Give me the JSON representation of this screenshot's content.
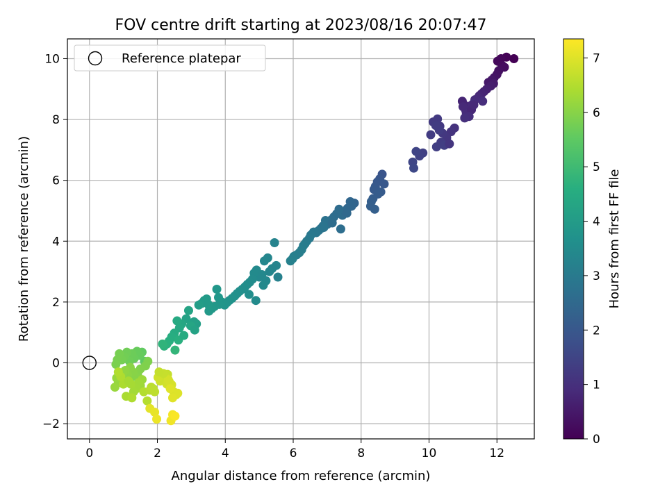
{
  "chart_data": {
    "type": "scatter",
    "title": "FOV centre drift starting at 2023/08/16 20:07:47",
    "xlabel": "Angular distance from reference (arcmin)",
    "ylabel": "Rotation from reference (arcmin)",
    "colorbar_label": "Hours from first FF file",
    "xlim": [
      -0.65,
      13.1
    ],
    "ylim": [
      -2.5,
      10.65
    ],
    "x_ticks": [
      0,
      2,
      4,
      6,
      8,
      10,
      12
    ],
    "y_ticks": [
      -2,
      0,
      2,
      4,
      6,
      8,
      10
    ],
    "colorbar_ticks": [
      0,
      1,
      2,
      3,
      4,
      5,
      6,
      7
    ],
    "colorbar_range": [
      0,
      7.35
    ],
    "colormap": "viridis",
    "grid": true,
    "legend": {
      "location": "upper-left",
      "entries": [
        {
          "label": "Reference platepar",
          "marker": "hollow-circle"
        }
      ]
    },
    "reference_point": {
      "x": 0,
      "y": 0
    },
    "series": [
      {
        "x": [
          12.5,
          12.28,
          12.12,
          12.02,
          12.15,
          12.22,
          12.05,
          12.0,
          11.92,
          11.85,
          11.75,
          11.9,
          11.82,
          11.7,
          11.62,
          11.55,
          11.48,
          11.45,
          11.35,
          11.58,
          11.3,
          11.22,
          11.15,
          11.08,
          11.02,
          10.98,
          11.0,
          11.1,
          11.25,
          11.32,
          11.18,
          11.05
        ],
        "y": [
          10.0,
          10.05,
          10.0,
          9.92,
          9.78,
          9.72,
          9.6,
          9.48,
          9.38,
          9.3,
          9.22,
          9.18,
          9.1,
          9.0,
          8.92,
          8.85,
          8.78,
          8.72,
          8.65,
          8.6,
          8.52,
          8.45,
          8.38,
          8.3,
          8.5,
          8.6,
          8.42,
          8.2,
          8.32,
          8.48,
          8.1,
          8.05
        ],
        "hours": [
          0.0,
          0.05,
          0.1,
          0.15,
          0.2,
          0.25,
          0.3,
          0.35,
          0.4,
          0.45,
          0.5,
          0.55,
          0.6,
          0.65,
          0.7,
          0.75,
          0.8,
          0.85,
          0.9,
          0.95,
          1.0,
          0.85,
          0.9,
          0.95,
          0.8,
          0.75,
          0.85,
          0.9,
          0.8,
          0.85,
          0.95,
          1.0
        ]
      },
      {
        "x": [
          10.75,
          10.65,
          10.52,
          10.4,
          10.32,
          10.25,
          10.12,
          10.05,
          10.35,
          10.22,
          10.3,
          10.45,
          9.82,
          9.72,
          9.62,
          9.52,
          9.55,
          10.6,
          10.2
        ],
        "y": [
          7.72,
          7.6,
          7.4,
          7.55,
          7.78,
          8.02,
          7.92,
          7.5,
          7.25,
          7.1,
          7.65,
          7.15,
          6.9,
          6.8,
          6.95,
          6.6,
          6.4,
          7.2,
          7.8
        ],
        "hours": [
          1.05,
          1.1,
          1.15,
          1.2,
          1.2,
          1.25,
          1.25,
          1.3,
          1.3,
          1.35,
          1.3,
          1.35,
          1.4,
          1.45,
          1.5,
          1.55,
          1.6,
          1.12,
          1.28
        ]
      },
      {
        "x": [
          8.62,
          8.55,
          8.68,
          8.48,
          8.42,
          8.38,
          8.58,
          8.5,
          8.35,
          8.3,
          8.28,
          8.4,
          7.8,
          7.72,
          7.68,
          7.6,
          7.52,
          7.45,
          7.35,
          7.28,
          7.2,
          7.12,
          7.05,
          7.0,
          6.95,
          6.88,
          6.82,
          6.75,
          6.68,
          6.6,
          6.52,
          6.48,
          6.4,
          6.35,
          6.3,
          6.25,
          6.18,
          6.1,
          6.02,
          5.98,
          5.92,
          7.58,
          7.4,
          7.15,
          6.9
        ],
        "y": [
          6.2,
          6.05,
          5.88,
          5.95,
          5.8,
          5.7,
          5.62,
          5.55,
          5.4,
          5.3,
          5.15,
          5.05,
          5.25,
          5.15,
          5.3,
          5.08,
          4.98,
          4.85,
          5.05,
          4.9,
          4.8,
          4.7,
          4.62,
          4.55,
          4.68,
          4.5,
          4.42,
          4.35,
          4.28,
          4.3,
          4.2,
          4.1,
          4.0,
          3.92,
          3.85,
          3.72,
          3.62,
          3.55,
          3.5,
          3.42,
          3.35,
          4.92,
          4.4,
          4.6,
          4.45
        ],
        "hours": [
          1.9,
          1.95,
          2.0,
          2.02,
          2.05,
          2.08,
          2.1,
          2.12,
          2.15,
          2.18,
          2.2,
          2.22,
          2.35,
          2.4,
          2.42,
          2.45,
          2.5,
          2.55,
          2.58,
          2.6,
          2.62,
          2.65,
          2.7,
          2.72,
          2.75,
          2.78,
          2.8,
          2.85,
          2.88,
          2.9,
          2.92,
          2.95,
          3.0,
          3.02,
          3.05,
          3.08,
          3.1,
          3.12,
          3.15,
          3.18,
          3.2,
          2.48,
          2.65,
          2.6,
          2.82
        ]
      },
      {
        "x": [
          5.45,
          5.5,
          5.38,
          5.3,
          5.25,
          5.15,
          5.08,
          5.0,
          4.92,
          4.85,
          4.8,
          4.72,
          4.65,
          4.58,
          4.5,
          4.42,
          4.35,
          4.28,
          4.2,
          4.12,
          4.05,
          3.98,
          3.9,
          3.82,
          3.75,
          3.68,
          3.6,
          3.52,
          3.45,
          3.38,
          3.3,
          3.22,
          3.15,
          3.08,
          5.55,
          5.2,
          4.9,
          5.12,
          4.7,
          3.8,
          3.5
        ],
        "y": [
          3.95,
          3.2,
          3.1,
          3.0,
          3.45,
          3.35,
          2.9,
          2.82,
          3.05,
          2.95,
          2.75,
          2.65,
          2.58,
          2.5,
          2.42,
          2.35,
          2.28,
          2.2,
          2.12,
          2.05,
          1.98,
          1.9,
          2.0,
          1.92,
          2.42,
          1.85,
          1.78,
          1.7,
          2.1,
          2.05,
          1.95,
          1.9,
          1.28,
          1.35,
          2.82,
          2.7,
          2.05,
          2.55,
          2.25,
          2.15,
          1.92
        ],
        "hours": [
          3.25,
          3.28,
          3.3,
          3.32,
          3.35,
          3.38,
          3.4,
          3.42,
          3.45,
          3.48,
          3.5,
          3.52,
          3.55,
          3.58,
          3.6,
          3.62,
          3.65,
          3.68,
          3.7,
          3.72,
          3.75,
          3.78,
          3.8,
          3.82,
          3.85,
          3.88,
          3.9,
          3.92,
          3.95,
          3.98,
          4.0,
          4.05,
          4.1,
          4.15,
          3.2,
          3.4,
          3.5,
          3.45,
          3.6,
          3.85,
          3.95
        ]
      },
      {
        "x": [
          2.85,
          2.92,
          2.98,
          3.1,
          2.72,
          2.65,
          2.58,
          2.5,
          2.42,
          2.35,
          2.28,
          2.2,
          2.15,
          2.52,
          2.62,
          2.78
        ],
        "y": [
          1.45,
          1.72,
          1.22,
          1.08,
          1.28,
          1.15,
          1.38,
          0.98,
          0.85,
          0.72,
          0.62,
          0.55,
          0.62,
          0.42,
          0.75,
          0.9
        ],
        "hours": [
          4.2,
          4.25,
          4.3,
          4.22,
          4.35,
          4.4,
          4.45,
          4.5,
          4.55,
          4.6,
          4.65,
          4.7,
          4.75,
          4.8,
          4.62,
          4.5
        ]
      },
      {
        "x": [
          1.62,
          1.55,
          1.48,
          1.4,
          1.32,
          1.25,
          1.18,
          1.1,
          1.02,
          0.95,
          0.88,
          0.82,
          0.78,
          1.72,
          1.65,
          1.5,
          1.42,
          1.35,
          1.28,
          1.2,
          1.12,
          1.05,
          0.98,
          0.9,
          0.85,
          0.8,
          0.75,
          1.55,
          1.5,
          1.45,
          1.38,
          1.3,
          1.22,
          1.15,
          1.08,
          1.0,
          0.92,
          0.85,
          1.6,
          1.7,
          1.78,
          1.82,
          1.88,
          1.92,
          1.25,
          1.15
        ],
        "y": [
          0.05,
          0.35,
          0.25,
          0.38,
          0.15,
          0.3,
          0.05,
          0.35,
          0.2,
          0.1,
          0.3,
          0.1,
          -0.05,
          0.05,
          -0.1,
          -0.2,
          -0.35,
          -0.45,
          -0.3,
          -0.15,
          -0.4,
          -0.25,
          -0.35,
          -0.55,
          -0.65,
          -0.5,
          -0.8,
          -0.55,
          -0.75,
          -0.65,
          -0.85,
          -0.95,
          -0.7,
          -0.6,
          -1.1,
          -0.7,
          -0.45,
          -0.3,
          -0.95,
          -1.25,
          -0.9,
          -0.8,
          -0.85,
          -0.95,
          -1.15,
          -0.6
        ],
        "hours": [
          5.5,
          5.55,
          5.6,
          5.62,
          5.65,
          5.68,
          5.7,
          5.72,
          5.75,
          5.78,
          5.8,
          5.82,
          5.85,
          5.88,
          5.9,
          5.92,
          5.95,
          5.98,
          6.0,
          6.02,
          6.05,
          6.08,
          6.1,
          6.12,
          6.15,
          6.18,
          6.2,
          6.22,
          6.25,
          6.28,
          6.3,
          6.32,
          6.35,
          6.38,
          6.4,
          6.42,
          6.45,
          6.48,
          6.5,
          6.52,
          6.55,
          6.58,
          6.6,
          6.62,
          6.45,
          6.35
        ]
      },
      {
        "x": [
          2.3,
          2.22,
          2.15,
          2.08,
          2.02,
          2.28,
          2.35,
          2.42,
          2.48,
          2.55,
          2.6,
          2.38,
          2.45,
          2.32,
          2.18,
          2.05,
          1.78,
          1.92,
          1.98,
          2.4,
          2.45,
          2.52
        ],
        "y": [
          -0.38,
          -0.45,
          -0.52,
          -0.6,
          -0.48,
          -0.7,
          -0.62,
          -0.72,
          -0.95,
          -1.05,
          -1.0,
          -0.85,
          -1.15,
          -0.55,
          -0.35,
          -0.3,
          -1.5,
          -1.62,
          -1.85,
          -1.9,
          -1.7,
          -1.75
        ],
        "hours": [
          6.7,
          6.75,
          6.78,
          6.8,
          6.82,
          6.85,
          6.88,
          6.9,
          6.92,
          6.95,
          6.98,
          7.0,
          7.02,
          6.88,
          6.72,
          6.7,
          7.05,
          7.1,
          7.15,
          7.2,
          7.25,
          7.3
        ]
      }
    ]
  }
}
